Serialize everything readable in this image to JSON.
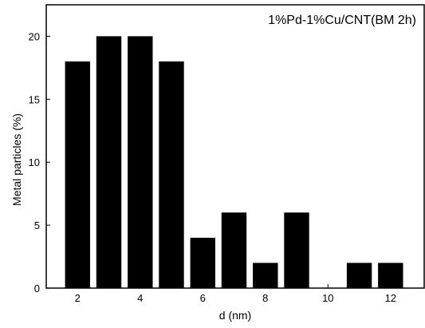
{
  "chart_data": {
    "type": "bar",
    "title": "1%Pd-1%Cu/CNT(BM 2h)",
    "xlabel": "d (nm)",
    "ylabel": "Metal particles (%)",
    "x": [
      2,
      3,
      4,
      5,
      6,
      7,
      8,
      9,
      10,
      11,
      12
    ],
    "values": [
      18,
      20,
      20,
      18,
      4,
      6,
      2,
      6,
      0,
      2,
      2
    ],
    "xlim": [
      1,
      13.1
    ],
    "ylim": [
      0,
      22.5
    ],
    "xticks": [
      2,
      4,
      6,
      8,
      10,
      12
    ],
    "yticks": [
      0,
      5,
      10,
      15,
      20
    ],
    "bar_width": 0.8,
    "grid": false,
    "bar_color": "#000000"
  }
}
